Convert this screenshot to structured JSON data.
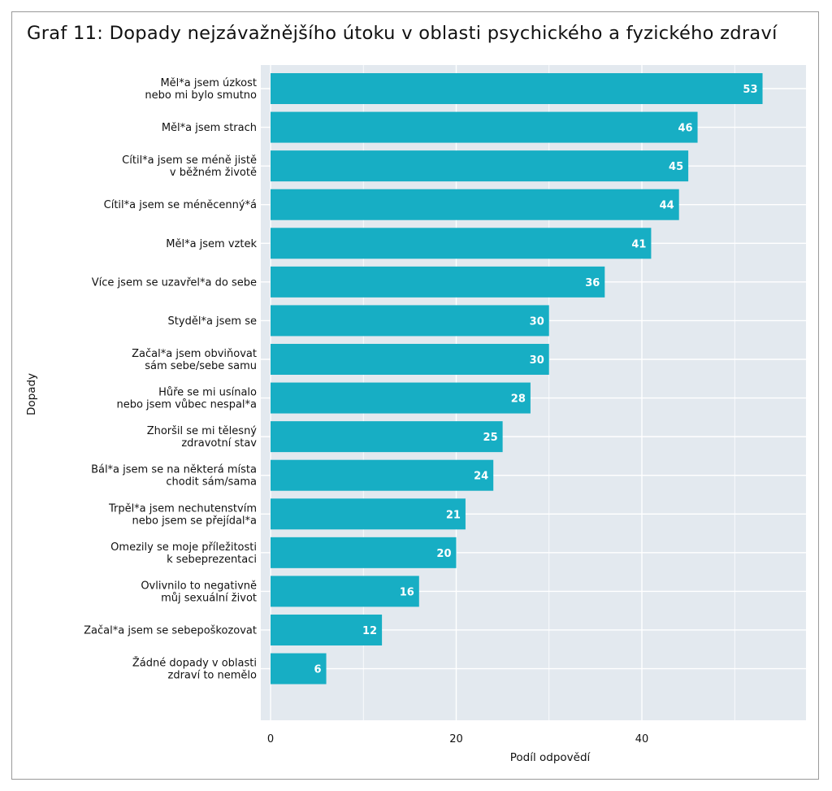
{
  "chart_data": {
    "type": "bar",
    "orientation": "horizontal",
    "title": "Graf 11: Dopady nejzávažnějšího útoku v oblasti psychického a fyzického zdraví",
    "xlabel": "Podíl odpovědí",
    "ylabel": "Dopady",
    "xlim": [
      0,
      57
    ],
    "xticks": [
      0,
      20,
      40
    ],
    "grid": true,
    "colors": {
      "bar": "#17AEC4",
      "panel": "#E3E9EF",
      "grid": "#FFFFFF"
    },
    "categories": [
      [
        "Měl*a jsem úzkost",
        "nebo mi bylo smutno"
      ],
      [
        "Měl*a jsem strach"
      ],
      [
        "Cítil*a jsem se méně jistě",
        "v běžném životě"
      ],
      [
        "Cítil*a jsem se méněcenný*á"
      ],
      [
        "Měl*a jsem vztek"
      ],
      [
        "Více jsem se uzavřel*a do sebe"
      ],
      [
        "Styděl*a jsem se"
      ],
      [
        "Začal*a jsem obviňovat",
        "sám sebe/sebe samu"
      ],
      [
        "Hůře se mi usínalo",
        "nebo jsem vůbec nespal*a"
      ],
      [
        "Zhoršil se mi tělesný",
        "zdravotní stav"
      ],
      [
        "Bál*a jsem se na některá místa",
        "chodit sám/sama"
      ],
      [
        "Trpěl*a jsem nechutenstvím",
        "nebo jsem se přejídal*a"
      ],
      [
        "Omezily se moje příležitosti",
        "k sebeprezentaci"
      ],
      [
        "Ovlivnilo to negativně",
        "můj sexuální život"
      ],
      [
        "Začal*a jsem se sebepoškozovat"
      ],
      [
        "Žádné dopady v oblasti",
        "zdraví to nemělo"
      ]
    ],
    "values": [
      53,
      46,
      45,
      44,
      41,
      36,
      30,
      30,
      28,
      25,
      24,
      21,
      20,
      16,
      12,
      6
    ]
  }
}
